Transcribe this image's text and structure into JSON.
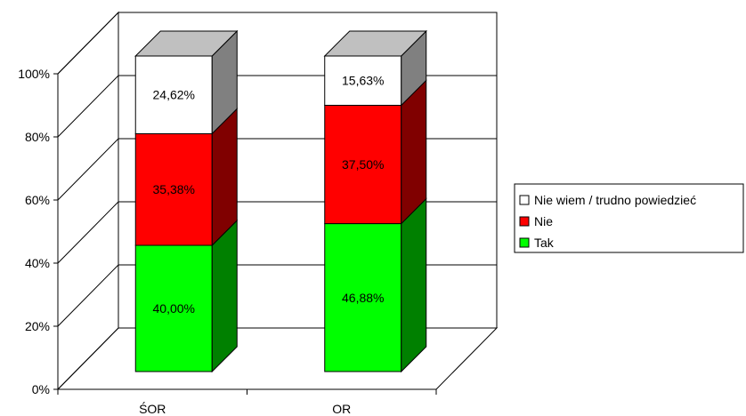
{
  "chart_data": {
    "type": "bar",
    "stacked": true,
    "three_d": true,
    "percent_stacked": true,
    "title": "",
    "xlabel": "",
    "ylabel": "",
    "ylim": [
      0,
      100
    ],
    "yticks": [
      "0%",
      "20%",
      "40%",
      "60%",
      "80%",
      "100%"
    ],
    "grid": true,
    "legend_position": "right",
    "categories": [
      "ŚOR",
      "OR"
    ],
    "series": [
      {
        "name": "Tak",
        "values": [
          40.0,
          46.88
        ],
        "labels": [
          "40,00%",
          "46,88%"
        ],
        "color": "#00ff00",
        "side_color": "#008000"
      },
      {
        "name": "Nie",
        "values": [
          35.38,
          37.5
        ],
        "labels": [
          "35,38%",
          "37,50%"
        ],
        "color": "#ff0000",
        "side_color": "#800000"
      },
      {
        "name": "Nie wiem / trudno powiedzieć",
        "values": [
          24.62,
          15.63
        ],
        "labels": [
          "24,62%",
          "15,63%"
        ],
        "color": "#ffffff",
        "side_color": "#808080"
      }
    ],
    "legend_order": [
      "Nie wiem / trudno powiedzieć",
      "Nie",
      "Tak"
    ]
  }
}
